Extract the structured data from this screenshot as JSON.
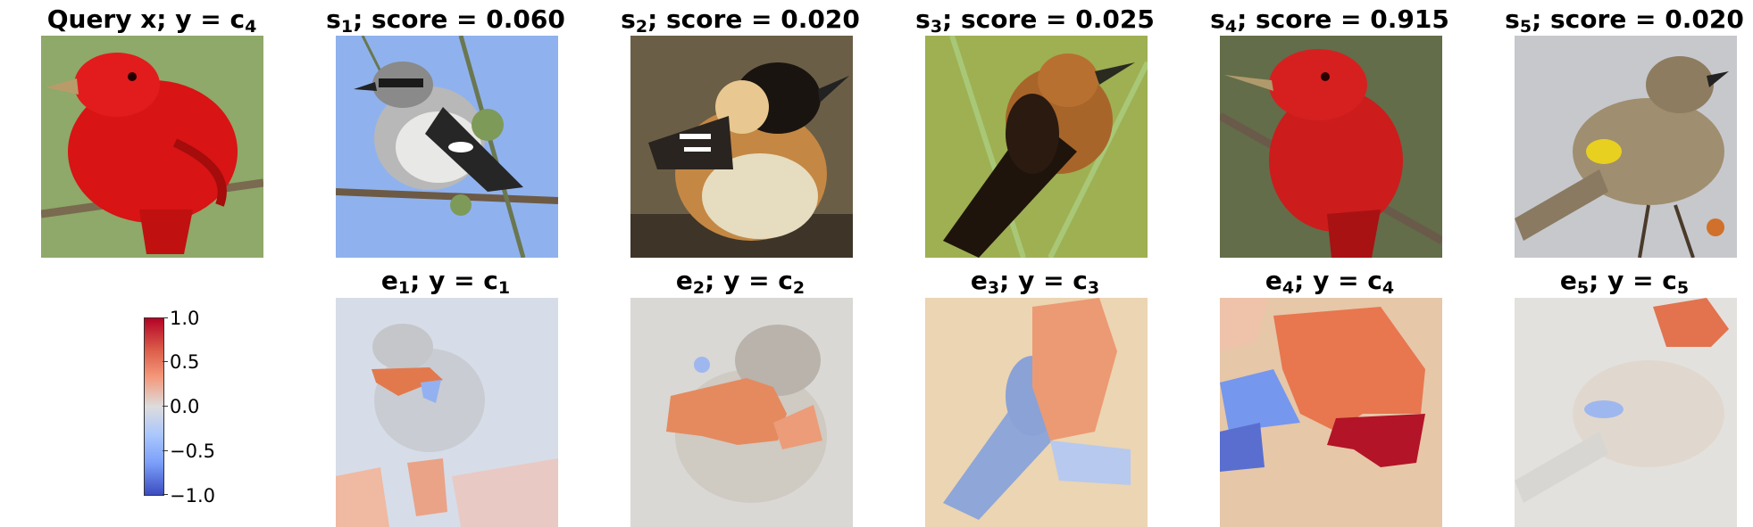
{
  "top_row": [
    {
      "title": "Query x; y = c",
      "sub": "4",
      "suffix": "",
      "subject": "red bird on branch"
    },
    {
      "title": "s",
      "sub": "1",
      "suffix": "; score = 0.060",
      "subject": "grey shrike on branch"
    },
    {
      "title": "s",
      "sub": "2",
      "suffix": "; score = 0.020",
      "subject": "chestnut bird"
    },
    {
      "title": "s",
      "sub": "3",
      "suffix": "; score = 0.025",
      "subject": "dark orange bird on reed"
    },
    {
      "title": "s",
      "sub": "4",
      "suffix": "; score = 0.915",
      "subject": "red bird on branch"
    },
    {
      "title": "s",
      "sub": "5",
      "suffix": "; score = 0.020",
      "subject": "yellow-rumped warbler"
    }
  ],
  "bottom_row": [
    {
      "title": "e",
      "sub": "1",
      "mid": "; y = c",
      "sub2": "1"
    },
    {
      "title": "e",
      "sub": "2",
      "mid": "; y = c",
      "sub2": "2"
    },
    {
      "title": "e",
      "sub": "3",
      "mid": "; y = c",
      "sub2": "3"
    },
    {
      "title": "e",
      "sub": "4",
      "mid": "; y = c",
      "sub2": "4"
    },
    {
      "title": "e",
      "sub": "5",
      "mid": "; y = c",
      "sub2": "5"
    }
  ],
  "colorbar": {
    "colormap": "coolwarm",
    "min": -1.0,
    "max": 1.0,
    "tick_labels": [
      "1.0",
      "0.5",
      "0.0",
      "−0.5",
      "−1.0"
    ]
  },
  "colors": {
    "positive": "#b40426",
    "neutral": "#dddcdc",
    "negative": "#3b4cc0"
  }
}
